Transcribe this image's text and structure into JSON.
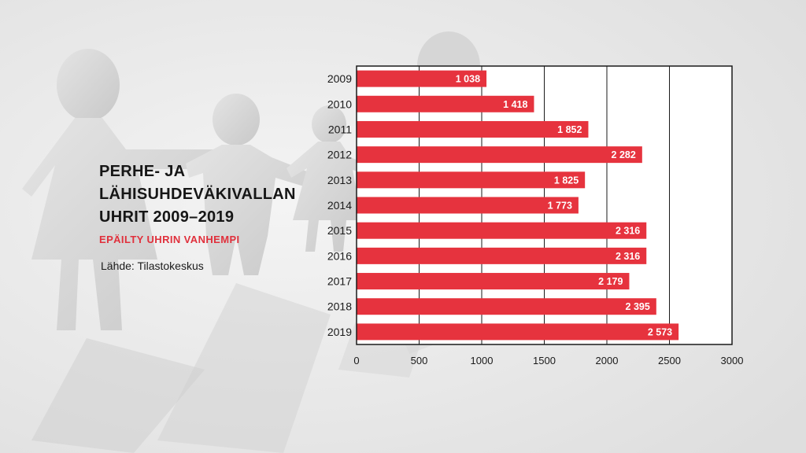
{
  "title_lines": [
    "PERHE- JA",
    "LÄHISUHDEVÄKIVALLAN",
    "UHRIT 2009–2019"
  ],
  "subtitle": "EPÄILTY UHRIN VANHEMPI",
  "source": "Lähde: Tilastokeskus",
  "colors": {
    "bar": "#e6333e",
    "bar_label": "#ffffff",
    "title": "#161616",
    "subtitle": "#e0303c",
    "plot_bg": "#ffffff",
    "grid": "#1a1a1a"
  },
  "chart_data": {
    "type": "bar",
    "orientation": "horizontal",
    "categories": [
      "2009",
      "2010",
      "2011",
      "2012",
      "2013",
      "2014",
      "2015",
      "2016",
      "2017",
      "2018",
      "2019"
    ],
    "values": [
      1038,
      1418,
      1852,
      2282,
      1825,
      1773,
      2316,
      2316,
      2179,
      2395,
      2573
    ],
    "data_labels": [
      "1 038",
      "1 418",
      "1 852",
      "2 282",
      "1 825",
      "1 773",
      "2 316",
      "2 316",
      "2 179",
      "2 395",
      "2 573"
    ],
    "xlim": [
      0,
      3000
    ],
    "x_ticks": [
      0,
      500,
      1000,
      1500,
      2000,
      2500,
      3000
    ],
    "x_tick_labels": [
      "0",
      "500",
      "1000",
      "1500",
      "2000",
      "2500",
      "3000"
    ],
    "grid": true,
    "title": "PERHE- JA LÄHISUHDEVÄKIVALLAN UHRIT 2009–2019",
    "xlabel": "",
    "ylabel": ""
  }
}
